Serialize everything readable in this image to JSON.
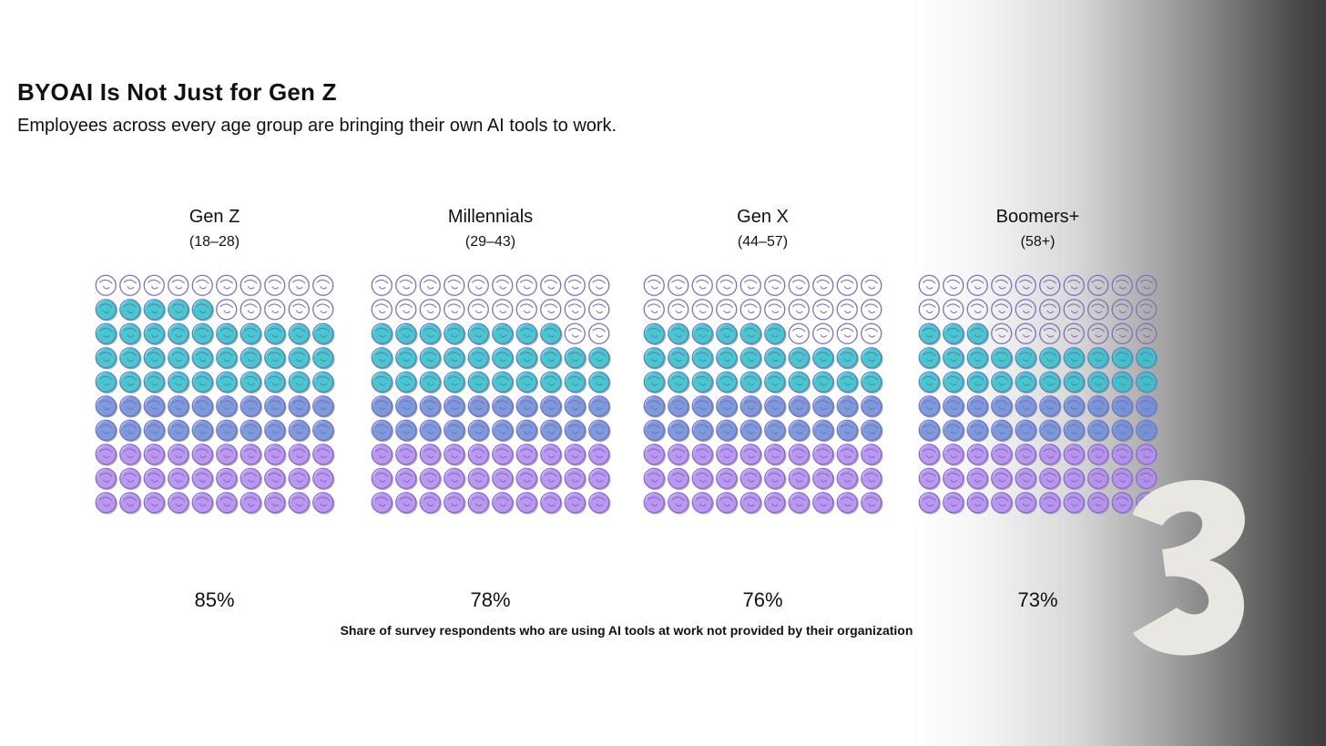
{
  "title": "BYOAI Is Not Just for Gen Z",
  "subtitle": "Employees across every age group are bringing their own AI tools to work.",
  "footnote": "Share of survey respondents who are using AI tools at work not provided by their organization",
  "colors": {
    "outline": "#7b72b8",
    "teal": "#2fc3c9",
    "blue": "#6f8fd8",
    "violet": "#b58cf0",
    "deco": "#e9e7e2"
  },
  "chart_data": {
    "type": "waffle",
    "grid": [
      10,
      10
    ],
    "unit": "%",
    "series": [
      {
        "name": "Gen Z",
        "range": "(18–28)",
        "value": 85,
        "label": "85%"
      },
      {
        "name": "Millennials",
        "range": "(29–43)",
        "value": 78,
        "label": "78%"
      },
      {
        "name": "Gen X",
        "range": "(44–57)",
        "value": 76,
        "label": "76%"
      },
      {
        "name": "Boomers+",
        "range": "(58+)",
        "value": 73,
        "label": "73%"
      }
    ]
  }
}
